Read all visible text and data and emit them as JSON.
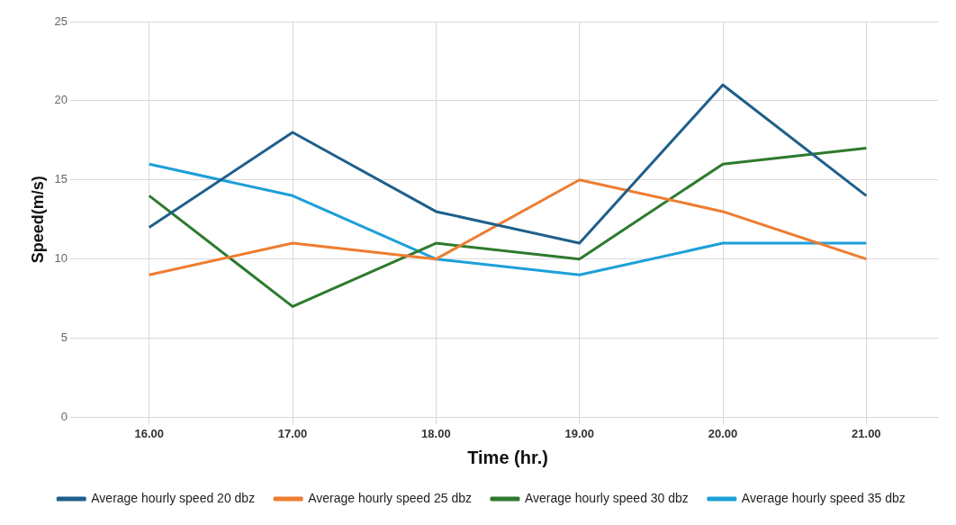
{
  "chart_data": {
    "type": "line",
    "xlabel": "Time (hr.)",
    "ylabel": "Speed(m/s)",
    "categories": [
      "16.00",
      "17.00",
      "18.00",
      "19.00",
      "20.00",
      "21.00"
    ],
    "series": [
      {
        "name": "Average hourly speed 20 dbz",
        "color": "#1f5f8b",
        "values": [
          12,
          18,
          13,
          11,
          21,
          14
        ]
      },
      {
        "name": "Average hourly speed 25 dbz",
        "color": "#ed7d31",
        "values": [
          9,
          11,
          10,
          15,
          13,
          10
        ]
      },
      {
        "name": "Average hourly speed 30 dbz",
        "color": "#2e7a2e",
        "values": [
          14,
          7,
          11,
          10,
          16,
          17
        ]
      },
      {
        "name": "Average hourly speed 35 dbz",
        "color": "#1ca0d8",
        "values": [
          16,
          14,
          10,
          9,
          11,
          11
        ]
      }
    ],
    "ylim": [
      0,
      25
    ],
    "yticks": [
      0,
      5,
      10,
      15,
      20,
      25
    ],
    "grid": true,
    "legend": "bottom",
    "marker": "none",
    "line_style": "solid"
  }
}
